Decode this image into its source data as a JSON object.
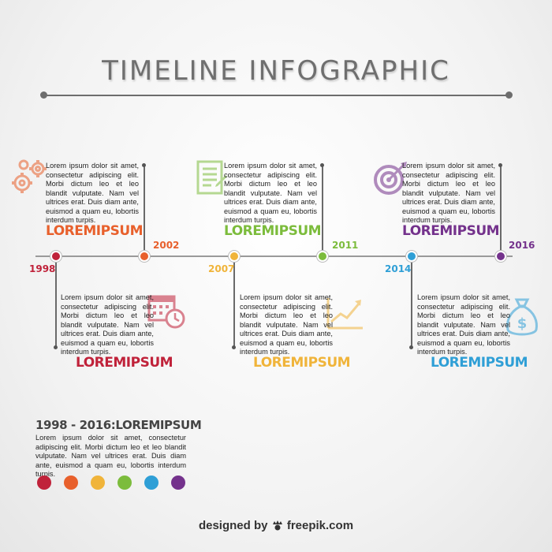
{
  "title": "TIMELINE INFOGRAPHIC",
  "lorem": "Lorem ipsum dolor sit amet, consectetur adipiscing elit. Morbi dictum leo et leo blandit vulputate. Nam vel ultrices erat. Duis diam ante, euismod a quam eu, lobortis interdum turpis.",
  "events": [
    {
      "year": "1998",
      "heading": "LOREMIPSUM",
      "color": "#c0223a",
      "icon": "calendar-icon"
    },
    {
      "year": "2002",
      "heading": "LOREMIPSUM",
      "color": "#e8602c",
      "icon": "gears-icon"
    },
    {
      "year": "2007",
      "heading": "LOREMIPSUM",
      "color": "#f0b43a",
      "icon": "chart-icon"
    },
    {
      "year": "2011",
      "heading": "LOREMIPSUM",
      "color": "#7cbc3c",
      "icon": "document-icon"
    },
    {
      "year": "2014",
      "heading": "LOREMIPSUM",
      "color": "#2f9fd6",
      "icon": "money-bag-icon"
    },
    {
      "year": "2016",
      "heading": "LOREMIPSUM",
      "color": "#74328c",
      "icon": "target-icon"
    }
  ],
  "summary": {
    "title": "1998 - 2016:LOREMIPSUM",
    "text": "Lorem ipsum dolor sit amet, consectetur adipiscing elit. Morbi dictum leo et leo blandit vulputate. Nam vel ultrices erat. Duis diam ante, euismod a quam eu, lobortis interdum turpis."
  },
  "palette": [
    "#c0223a",
    "#e8602c",
    "#f0b43a",
    "#7cbc3c",
    "#2f9fd6",
    "#74328c"
  ],
  "credit": {
    "prefix": "designed by",
    "brand": "freepik.com"
  }
}
